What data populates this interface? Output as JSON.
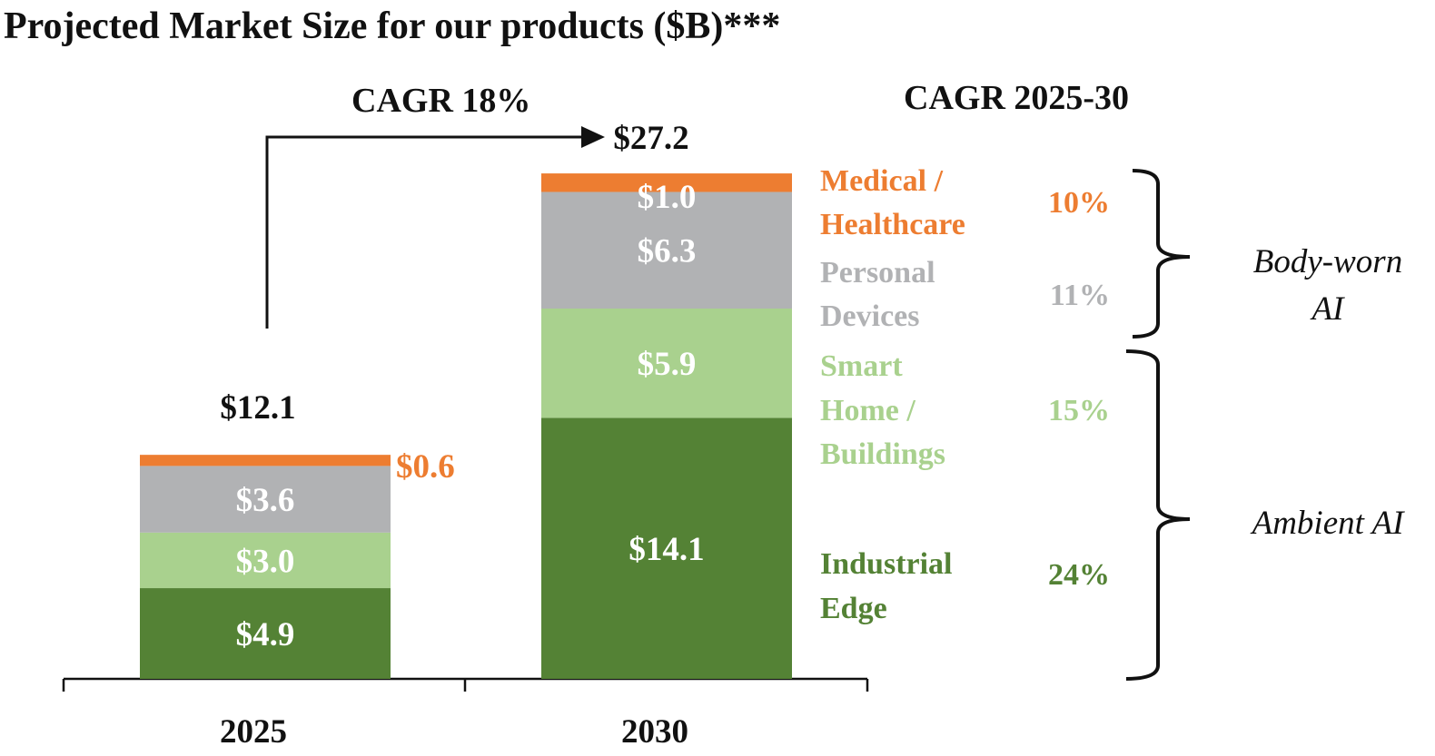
{
  "chart_data": {
    "type": "bar",
    "stacked": true,
    "title": "Projected Market Size for our products ($B)***",
    "categories": [
      "2025",
      "2030"
    ],
    "totals": [
      "$12.1",
      "$27.2"
    ],
    "series": [
      {
        "name": "Industrial Edge",
        "legend_lines": [
          "Industrial",
          "Edge"
        ],
        "color": "#548235",
        "values": [
          4.9,
          14.1
        ],
        "labels": [
          "$4.9",
          "$14.1"
        ],
        "label_color": "#ffffff",
        "cagr": "24%"
      },
      {
        "name": "Smart Home / Buildings",
        "legend_lines": [
          "Smart",
          "Home /",
          "Buildings"
        ],
        "color": "#a9d18e",
        "values": [
          3.0,
          5.9
        ],
        "labels": [
          "$3.0",
          "$5.9"
        ],
        "label_color": "#ffffff",
        "cagr": "15%"
      },
      {
        "name": "Personal Devices",
        "legend_lines": [
          "Personal",
          "Devices"
        ],
        "color": "#b1b2b4",
        "values": [
          3.6,
          6.3
        ],
        "labels": [
          "$3.6",
          "$6.3"
        ],
        "label_color": "#ffffff",
        "cagr": "11%"
      },
      {
        "name": "Medical / Healthcare",
        "legend_lines": [
          "Medical /",
          "Healthcare"
        ],
        "color": "#ed7d31",
        "values": [
          0.6,
          1.0
        ],
        "labels": [
          "$0.6",
          "$1.0"
        ],
        "label_color": "#ffffff",
        "cagr": "10%"
      }
    ],
    "cagr_overall": "CAGR 18%",
    "cagr_header": "CAGR 2025-30",
    "groups": [
      {
        "name": "Body-worn AI",
        "lines": [
          "Body-worn",
          "AI"
        ]
      },
      {
        "name": "Ambient AI",
        "lines": [
          "Ambient AI"
        ]
      }
    ],
    "colors": {
      "text": "#111111",
      "legend_industrial": "#548235",
      "legend_smart": "#a9d18e",
      "legend_personal": "#b1b2b4",
      "legend_medical": "#ed7d31"
    }
  }
}
